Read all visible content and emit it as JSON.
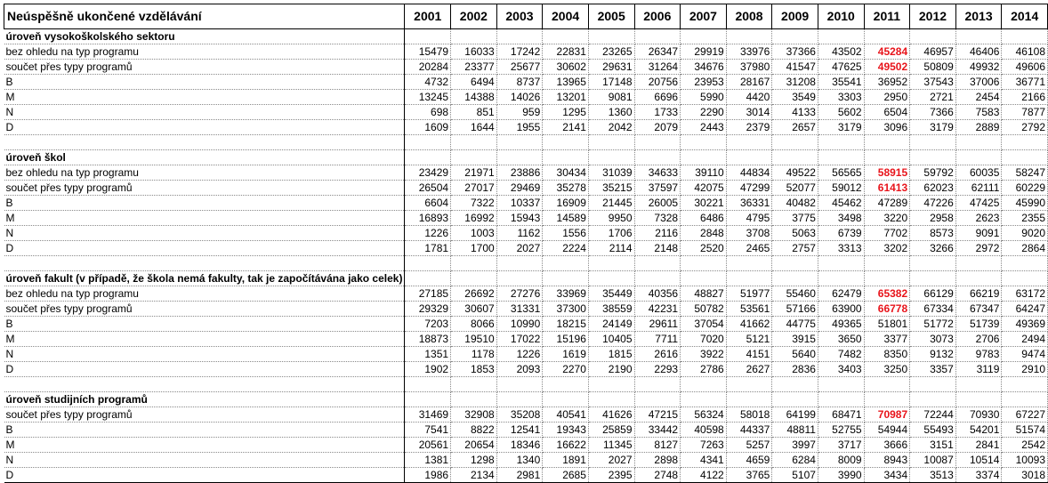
{
  "table": {
    "title": "Neúspěšně ukončené vzdělávání",
    "years": [
      "2001",
      "2002",
      "2003",
      "2004",
      "2005",
      "2006",
      "2007",
      "2008",
      "2009",
      "2010",
      "2011",
      "2012",
      "2013",
      "2014"
    ],
    "highlight_color": "#e8141b",
    "sections": [
      {
        "title": "úroveň vysokoškolského sektoru",
        "rows": [
          {
            "label": "bez ohledu na typ programu",
            "values": [
              "15479",
              "16033",
              "17242",
              "22831",
              "23265",
              "26347",
              "29919",
              "33976",
              "37366",
              "43502",
              "45284",
              "46957",
              "46406",
              "46108"
            ],
            "highlight_index": 10
          },
          {
            "label": "součet přes typy programů",
            "values": [
              "20284",
              "23377",
              "25677",
              "30602",
              "29631",
              "31264",
              "34676",
              "37980",
              "41547",
              "47625",
              "49502",
              "50809",
              "49932",
              "49606"
            ],
            "highlight_index": 10
          },
          {
            "label": "B",
            "values": [
              "4732",
              "6494",
              "8737",
              "13965",
              "17148",
              "20756",
              "23953",
              "28167",
              "31208",
              "35541",
              "36952",
              "37543",
              "37006",
              "36771"
            ]
          },
          {
            "label": "M",
            "values": [
              "13245",
              "14388",
              "14026",
              "13201",
              "9081",
              "6696",
              "5990",
              "4420",
              "3549",
              "3303",
              "2950",
              "2721",
              "2454",
              "2166"
            ]
          },
          {
            "label": "N",
            "values": [
              "698",
              "851",
              "959",
              "1295",
              "1360",
              "1733",
              "2290",
              "3014",
              "4133",
              "5602",
              "6504",
              "7366",
              "7583",
              "7877"
            ]
          },
          {
            "label": "D",
            "values": [
              "1609",
              "1644",
              "1955",
              "2141",
              "2042",
              "2079",
              "2443",
              "2379",
              "2657",
              "3179",
              "3096",
              "3179",
              "2889",
              "2792"
            ]
          }
        ]
      },
      {
        "title": "úroveň škol",
        "rows": [
          {
            "label": "bez ohledu na typ programu",
            "values": [
              "23429",
              "21971",
              "23886",
              "30434",
              "31039",
              "34633",
              "39110",
              "44834",
              "49522",
              "56565",
              "58915",
              "59792",
              "60035",
              "58247"
            ],
            "highlight_index": 10
          },
          {
            "label": "součet přes typy programů",
            "values": [
              "26504",
              "27017",
              "29469",
              "35278",
              "35215",
              "37597",
              "42075",
              "47299",
              "52077",
              "59012",
              "61413",
              "62023",
              "62111",
              "60229"
            ],
            "highlight_index": 10
          },
          {
            "label": "B",
            "values": [
              "6604",
              "7322",
              "10337",
              "16909",
              "21445",
              "26005",
              "30221",
              "36331",
              "40482",
              "45462",
              "47289",
              "47226",
              "47425",
              "45990"
            ]
          },
          {
            "label": "M",
            "values": [
              "16893",
              "16992",
              "15943",
              "14589",
              "9950",
              "7328",
              "6486",
              "4795",
              "3775",
              "3498",
              "3220",
              "2958",
              "2623",
              "2355"
            ]
          },
          {
            "label": "N",
            "values": [
              "1226",
              "1003",
              "1162",
              "1556",
              "1706",
              "2116",
              "2848",
              "3708",
              "5063",
              "6739",
              "7702",
              "8573",
              "9091",
              "9020"
            ]
          },
          {
            "label": "D",
            "values": [
              "1781",
              "1700",
              "2027",
              "2224",
              "2114",
              "2148",
              "2520",
              "2465",
              "2757",
              "3313",
              "3202",
              "3266",
              "2972",
              "2864"
            ]
          }
        ]
      },
      {
        "title": "úroveň fakult (v případě, že škola nemá fakulty, tak je započítávána jako celek)",
        "rows": [
          {
            "label": "bez ohledu na typ programu",
            "values": [
              "27185",
              "26692",
              "27276",
              "33969",
              "35449",
              "40356",
              "48827",
              "51977",
              "55460",
              "62479",
              "65382",
              "66129",
              "66219",
              "63172"
            ],
            "highlight_index": 10
          },
          {
            "label": "součet přes typy programů",
            "values": [
              "29329",
              "30607",
              "31331",
              "37300",
              "38559",
              "42231",
              "50782",
              "53561",
              "57166",
              "63900",
              "66778",
              "67334",
              "67347",
              "64247"
            ],
            "highlight_index": 10
          },
          {
            "label": "B",
            "values": [
              "7203",
              "8066",
              "10990",
              "18215",
              "24149",
              "29611",
              "37054",
              "41662",
              "44775",
              "49365",
              "51801",
              "51772",
              "51739",
              "49369"
            ]
          },
          {
            "label": "M",
            "values": [
              "18873",
              "19510",
              "17022",
              "15196",
              "10405",
              "7711",
              "7020",
              "5121",
              "3915",
              "3650",
              "3377",
              "3073",
              "2706",
              "2494"
            ]
          },
          {
            "label": "N",
            "values": [
              "1351",
              "1178",
              "1226",
              "1619",
              "1815",
              "2616",
              "3922",
              "4151",
              "5640",
              "7482",
              "8350",
              "9132",
              "9783",
              "9474"
            ]
          },
          {
            "label": "D",
            "values": [
              "1902",
              "1853",
              "2093",
              "2270",
              "2190",
              "2293",
              "2786",
              "2627",
              "2836",
              "3403",
              "3250",
              "3357",
              "3119",
              "2910"
            ]
          }
        ]
      },
      {
        "title": "úroveň studijních programů",
        "rows": [
          {
            "label": "součet přes typy programů",
            "values": [
              "31469",
              "32908",
              "35208",
              "40541",
              "41626",
              "47215",
              "56324",
              "58018",
              "64199",
              "68471",
              "70987",
              "72244",
              "70930",
              "67227"
            ],
            "highlight_index": 10
          },
          {
            "label": "B",
            "values": [
              "7541",
              "8822",
              "12541",
              "19343",
              "25859",
              "33442",
              "40598",
              "44337",
              "48811",
              "52755",
              "54944",
              "55493",
              "54201",
              "51574"
            ]
          },
          {
            "label": "M",
            "values": [
              "20561",
              "20654",
              "18346",
              "16622",
              "11345",
              "8127",
              "7263",
              "5257",
              "3997",
              "3717",
              "3666",
              "3151",
              "2841",
              "2542"
            ]
          },
          {
            "label": "N",
            "values": [
              "1381",
              "1298",
              "1340",
              "1891",
              "2027",
              "2898",
              "4341",
              "4659",
              "6284",
              "8009",
              "8943",
              "10087",
              "10514",
              "10093"
            ]
          },
          {
            "label": "D",
            "values": [
              "1986",
              "2134",
              "2981",
              "2685",
              "2395",
              "2748",
              "4122",
              "3765",
              "5107",
              "3990",
              "3434",
              "3513",
              "3374",
              "3018"
            ]
          }
        ]
      }
    ]
  }
}
